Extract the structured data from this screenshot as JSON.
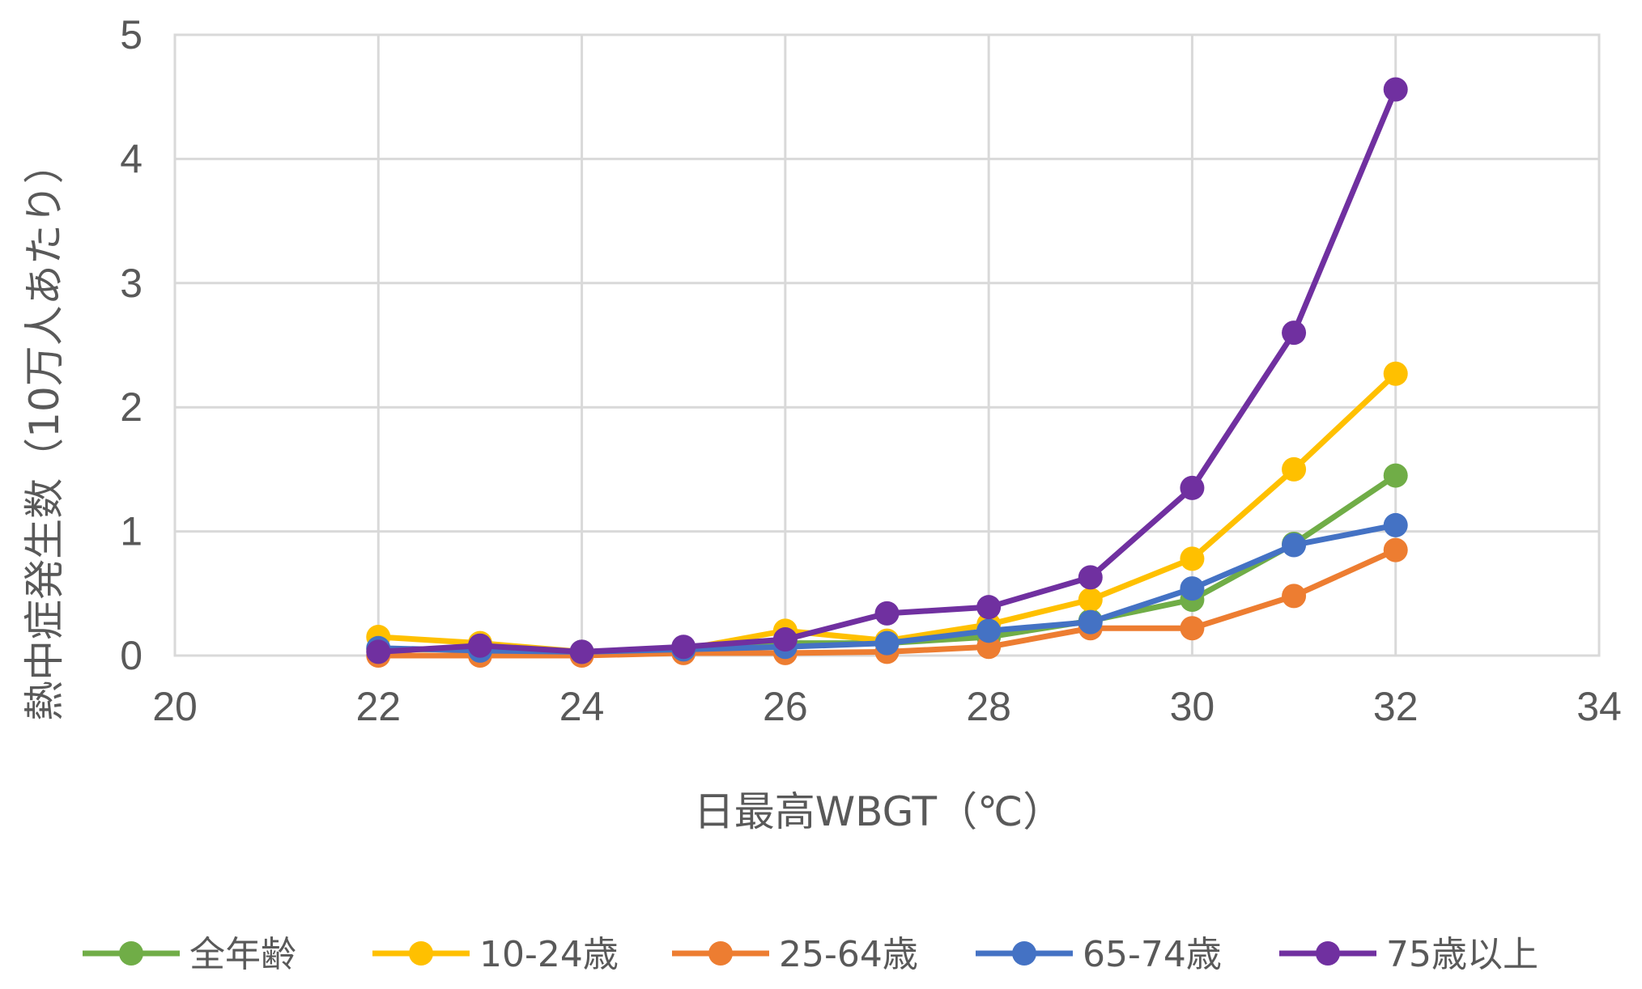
{
  "chart_data": {
    "type": "scatter",
    "title": "",
    "xlabel": "日最高WBGT（℃）",
    "ylabel": "熱中症発生数（10万人あたり）",
    "xlim": [
      20,
      34
    ],
    "ylim": [
      0,
      5
    ],
    "x_ticks": [
      "20",
      "22",
      "24",
      "26",
      "28",
      "30",
      "32",
      "34"
    ],
    "y_ticks": [
      "0",
      "1",
      "2",
      "3",
      "4",
      "5"
    ],
    "grid": true,
    "legend_position": "bottom",
    "x": [
      22,
      23,
      24,
      25,
      26,
      27,
      28,
      29,
      30,
      31,
      32
    ],
    "series": [
      {
        "name": "全年齢",
        "color": "#70ad47",
        "values": [
          0.05,
          0.05,
          0.02,
          0.04,
          0.1,
          0.1,
          0.15,
          0.28,
          0.45,
          0.9,
          1.45
        ]
      },
      {
        "name": "10-24歳",
        "color": "#ffc000",
        "values": [
          0.15,
          0.1,
          0.03,
          0.05,
          0.2,
          0.12,
          0.25,
          0.45,
          0.78,
          1.5,
          2.27
        ]
      },
      {
        "name": "25-64歳",
        "color": "#ed7d31",
        "values": [
          0.0,
          0.0,
          0.0,
          0.02,
          0.02,
          0.03,
          0.07,
          0.22,
          0.22,
          0.48,
          0.85
        ]
      },
      {
        "name": "65-74歳",
        "color": "#4472c4",
        "values": [
          0.06,
          0.04,
          0.03,
          0.05,
          0.07,
          0.1,
          0.2,
          0.27,
          0.54,
          0.89,
          1.05
        ]
      },
      {
        "name": "75歳以上",
        "color": "#7030a0",
        "values": [
          0.03,
          0.08,
          0.03,
          0.07,
          0.13,
          0.34,
          0.39,
          0.63,
          1.35,
          2.6,
          4.56
        ]
      }
    ]
  }
}
